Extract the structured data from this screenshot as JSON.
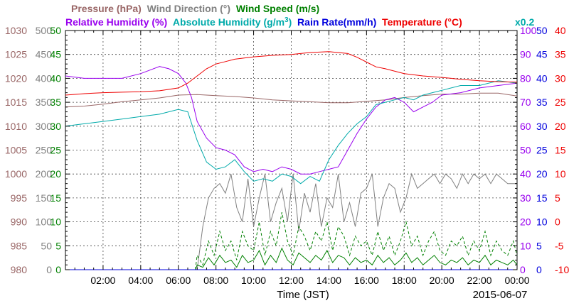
{
  "chart_data": {
    "type": "line",
    "date": "2015-06-07",
    "xlabel": "Time (JST)",
    "x_ticks": [
      "02:00",
      "04:00",
      "06:00",
      "08:00",
      "10:00",
      "12:00",
      "14:00",
      "16:00",
      "18:00",
      "20:00",
      "22:00",
      "00:00"
    ],
    "xlim": [
      0,
      24
    ],
    "grid": true,
    "legend_line1": [
      {
        "text": "Pressure (hPa)",
        "color": "#996666"
      },
      {
        "text": "Wind Direction (°)",
        "color": "#808080"
      },
      {
        "text": "Wind Speed (m/s)",
        "color": "#008000"
      }
    ],
    "legend_line2": [
      {
        "text": "Relative Humidity (%)",
        "color": "#9900ee"
      },
      {
        "text": "Absolute Humidity (g/m",
        "sup": "3",
        "tail": ")",
        "color": "#00aaaa"
      },
      {
        "text": "Rain Rate(mm/h)",
        "color": "#0000dd"
      },
      {
        "text": "Temperature (°C)",
        "color": "#ee0000"
      }
    ],
    "rain_factor": "x0.2",
    "rain_factor_color": "#00aaaa",
    "axes_left": [
      {
        "name": "Pressure (hPa)",
        "color": "#996666",
        "ticks": [
          "1030",
          "1025",
          "1020",
          "1015",
          "1010",
          "1005",
          "1000",
          "995",
          "990",
          "985",
          "980"
        ]
      },
      {
        "name": "Wind Direction (°)",
        "color": "#808080",
        "ticks": [
          "500",
          "450",
          "400",
          "350",
          "300",
          "250",
          "200",
          "150",
          "100",
          "50",
          "0"
        ]
      },
      {
        "name": "Wind Speed (m/s)",
        "color": "#008000",
        "ticks": [
          "50",
          "45",
          "40",
          "35",
          "30",
          "25",
          "20",
          "15",
          "10",
          "5",
          "0"
        ]
      }
    ],
    "axes_right": [
      {
        "name": "Relative Humidity (%)",
        "color": "#9900ee",
        "ticks": [
          "100",
          "90",
          "80",
          "70",
          "60",
          "50",
          "40",
          "30",
          "20",
          "10",
          "0"
        ]
      },
      {
        "name": "Rain Rate(mm/h)",
        "color": "#0000dd",
        "ticks": [
          "50",
          "45",
          "40",
          "35",
          "30",
          "25",
          "20",
          "15",
          "10",
          "5",
          "0"
        ]
      },
      {
        "name": "Temperature (°C)",
        "color": "#ee0000",
        "ticks": [
          "40",
          "35",
          "30",
          "25",
          "20",
          "15",
          "10",
          "5",
          "0",
          "-5",
          "-10"
        ]
      }
    ],
    "series": [
      {
        "name": "Pressure (hPa)",
        "color": "#996666",
        "style": "solid",
        "ylim": [
          980,
          1030
        ],
        "x": [
          0,
          1,
          2,
          3,
          4,
          5,
          6,
          7,
          8,
          9,
          10,
          11,
          12,
          13,
          14,
          15,
          16,
          17,
          18,
          19,
          20,
          21,
          22,
          23,
          24
        ],
        "y": [
          1014.0,
          1014.2,
          1014.6,
          1015.1,
          1015.5,
          1015.9,
          1016.5,
          1016.6,
          1016.4,
          1016.2,
          1015.9,
          1015.5,
          1015.3,
          1015.1,
          1014.9,
          1014.9,
          1015.2,
          1015.5,
          1016.0,
          1016.4,
          1016.7,
          1016.7,
          1016.9,
          1016.9,
          1016.3
        ]
      },
      {
        "name": "Wind Direction (°)",
        "color": "#808080",
        "style": "solid",
        "ylim": [
          0,
          500
        ],
        "x": [
          7.0,
          7.3,
          7.6,
          7.9,
          8.2,
          8.5,
          8.8,
          9.1,
          9.4,
          9.7,
          10.0,
          10.3,
          10.6,
          10.9,
          11.2,
          11.5,
          11.8,
          12.1,
          12.4,
          12.7,
          13.0,
          13.3,
          13.6,
          13.9,
          14.2,
          14.5,
          14.8,
          15.1,
          15.4,
          15.7,
          16.0,
          16.3,
          16.6,
          16.9,
          17.2,
          17.5,
          17.8,
          18.1,
          18.4,
          18.7,
          19.0,
          19.3,
          19.6,
          19.9,
          20.2,
          20.5,
          20.8,
          21.1,
          21.4,
          21.7,
          22.0,
          22.3,
          22.6,
          22.9,
          23.2,
          23.5,
          23.8,
          24.0
        ],
        "y": [
          0,
          90,
          150,
          170,
          180,
          160,
          200,
          130,
          100,
          190,
          90,
          150,
          200,
          100,
          140,
          170,
          100,
          200,
          80,
          160,
          120,
          180,
          90,
          150,
          130,
          200,
          100,
          140,
          90,
          160,
          170,
          200,
          90,
          150,
          180,
          170,
          120,
          150,
          200,
          170,
          180,
          190,
          200,
          180,
          200,
          190,
          170,
          200,
          180,
          200,
          190,
          200,
          180,
          200,
          190,
          180,
          180,
          180
        ]
      },
      {
        "name": "Wind Speed (m/s)",
        "color": "#008000",
        "style": "solid",
        "ylim": [
          0,
          50
        ],
        "x": [
          0,
          6.9,
          7.0,
          7.3,
          7.6,
          7.9,
          8.2,
          8.5,
          8.8,
          9.1,
          9.4,
          9.7,
          10.0,
          10.3,
          10.6,
          10.9,
          11.2,
          11.5,
          11.8,
          12.1,
          12.4,
          12.7,
          13.0,
          13.3,
          13.6,
          13.9,
          14.2,
          14.5,
          14.8,
          15.1,
          15.4,
          15.7,
          16.0,
          16.3,
          16.6,
          16.9,
          17.2,
          17.5,
          17.8,
          18.1,
          18.4,
          18.7,
          19.0,
          19.3,
          19.6,
          19.9,
          20.2,
          20.5,
          20.8,
          21.1,
          21.4,
          21.7,
          22.0,
          22.3,
          22.6,
          22.9,
          23.2,
          23.5,
          23.8,
          24.0
        ],
        "y": [
          0,
          0,
          1.0,
          0.5,
          2.5,
          1.0,
          3.0,
          1.5,
          2.0,
          0.5,
          3.0,
          1.5,
          2.0,
          4.0,
          1.0,
          3.0,
          1.5,
          4.5,
          2.0,
          1.0,
          3.5,
          2.5,
          1.5,
          3.0,
          2.0,
          4.0,
          1.5,
          3.0,
          2.5,
          1.0,
          2.5,
          1.5,
          2.0,
          1.0,
          3.0,
          1.5,
          2.5,
          1.0,
          2.0,
          3.5,
          1.5,
          2.5,
          1.0,
          2.0,
          3.0,
          1.5,
          1.0,
          2.0,
          1.5,
          2.5,
          1.0,
          2.0,
          1.5,
          3.0,
          1.0,
          2.0,
          1.5,
          1.0,
          2.0,
          1.0
        ]
      },
      {
        "name": "Wind Speed max (m/s)",
        "color": "#008000",
        "style": "dashed",
        "ylim": [
          0,
          50
        ],
        "x": [
          6.9,
          7.0,
          7.3,
          7.6,
          7.9,
          8.2,
          8.5,
          8.8,
          9.1,
          9.4,
          9.7,
          10.0,
          10.3,
          10.6,
          10.9,
          11.2,
          11.5,
          11.8,
          12.1,
          12.4,
          12.7,
          13.0,
          13.3,
          13.6,
          13.9,
          14.2,
          14.5,
          14.8,
          15.1,
          15.4,
          15.7,
          16.0,
          16.3,
          16.6,
          16.9,
          17.2,
          17.5,
          17.8,
          18.1,
          18.4,
          18.7,
          19.0,
          19.3,
          19.6,
          19.9,
          20.2,
          20.5,
          20.8,
          21.1,
          21.4,
          21.7,
          22.0,
          22.3,
          22.6,
          22.9,
          23.2,
          23.5,
          23.8,
          24.0
        ],
        "y": [
          0,
          3.0,
          1.0,
          6.0,
          3.0,
          8.0,
          4.0,
          6.0,
          2.0,
          8.0,
          5.0,
          4.0,
          10.0,
          3.0,
          8.0,
          5.0,
          12.0,
          6.0,
          3.0,
          9.0,
          7.0,
          4.0,
          8.0,
          6.0,
          10.0,
          4.0,
          9.0,
          7.0,
          3.0,
          7.0,
          5.0,
          6.0,
          3.0,
          8.0,
          4.0,
          7.0,
          3.0,
          6.0,
          10.0,
          5.0,
          7.0,
          3.0,
          6.0,
          8.0,
          4.0,
          3.0,
          6.0,
          5.0,
          7.0,
          3.0,
          6.0,
          4.0,
          8.0,
          3.0,
          6.0,
          4.0,
          3.0,
          6.0,
          3.0
        ]
      },
      {
        "name": "Relative Humidity (%)",
        "color": "#9900ee",
        "style": "solid",
        "ylim": [
          0,
          100
        ],
        "x": [
          0,
          1,
          2,
          3,
          4,
          5,
          5.5,
          6,
          6.4,
          6.7,
          7.0,
          7.5,
          8.0,
          8.5,
          9.0,
          9.5,
          10.0,
          10.5,
          11.0,
          11.5,
          12.0,
          12.5,
          13.0,
          13.5,
          14.0,
          14.5,
          15.0,
          15.5,
          16.0,
          16.5,
          17.0,
          17.5,
          18.0,
          18.5,
          19.0,
          19.5,
          20.0,
          21.0,
          22.0,
          23.0,
          24.0
        ],
        "y": [
          81,
          80,
          80,
          80,
          82,
          85,
          84,
          82,
          78,
          72,
          62,
          55,
          51,
          50,
          48,
          43,
          41,
          42,
          41,
          43,
          42,
          40,
          40,
          41,
          42,
          43,
          50,
          57,
          63,
          68,
          71,
          72,
          70,
          66,
          68,
          70,
          73,
          74,
          76,
          77,
          78
        ]
      },
      {
        "name": "Absolute Humidity (g/m³)",
        "color": "#00aaaa",
        "style": "solid",
        "ylim": [
          5.7,
          25.7
        ],
        "x": [
          0,
          1,
          2,
          3,
          4,
          5,
          6,
          6.5,
          7,
          7.5,
          8,
          8.5,
          9,
          9.5,
          10,
          10.5,
          11,
          11.5,
          12,
          12.5,
          13,
          13.5,
          14,
          14.5,
          15,
          15.5,
          16,
          16.5,
          17,
          17.5,
          18,
          18.5,
          19,
          19.5,
          20,
          20.5,
          21,
          22,
          23,
          24
        ],
        "y": [
          17.7,
          17.9,
          18.1,
          18.3,
          18.5,
          18.7,
          19.1,
          18.9,
          16.5,
          14.7,
          14.1,
          14.3,
          14.9,
          13.9,
          13.1,
          13.3,
          13.1,
          13.7,
          13.5,
          12.9,
          13.5,
          13.1,
          14.9,
          16.1,
          17.1,
          17.9,
          18.5,
          19.5,
          19.7,
          19.9,
          20.1,
          19.9,
          20.3,
          20.5,
          20.7,
          20.9,
          21.1,
          21.1,
          21.5,
          21.3
        ]
      },
      {
        "name": "Temperature (°C)",
        "color": "#ee0000",
        "style": "solid",
        "ylim": [
          -10,
          40
        ],
        "x": [
          0,
          1,
          2,
          3,
          4,
          5,
          6,
          6.5,
          7,
          7.5,
          8,
          8.5,
          9,
          10,
          11,
          12,
          13,
          14,
          15,
          15.5,
          16,
          16.5,
          17,
          18,
          19,
          20,
          21,
          22,
          23,
          24
        ],
        "y": [
          26.5,
          26.8,
          27,
          27.1,
          27.2,
          27.4,
          28,
          29,
          30.5,
          32,
          33,
          33.5,
          34,
          34.5,
          34.8,
          35,
          35.4,
          35.6,
          35.2,
          34.4,
          33.4,
          32.4,
          32,
          31,
          30.5,
          30.2,
          29.8,
          29.5,
          29.3,
          29.2
        ]
      },
      {
        "name": "Rain Rate(mm/h)",
        "color": "#0000dd",
        "style": "solid",
        "ylim": [
          0,
          50
        ],
        "x": [
          0,
          24
        ],
        "y": [
          0,
          0
        ]
      }
    ]
  }
}
